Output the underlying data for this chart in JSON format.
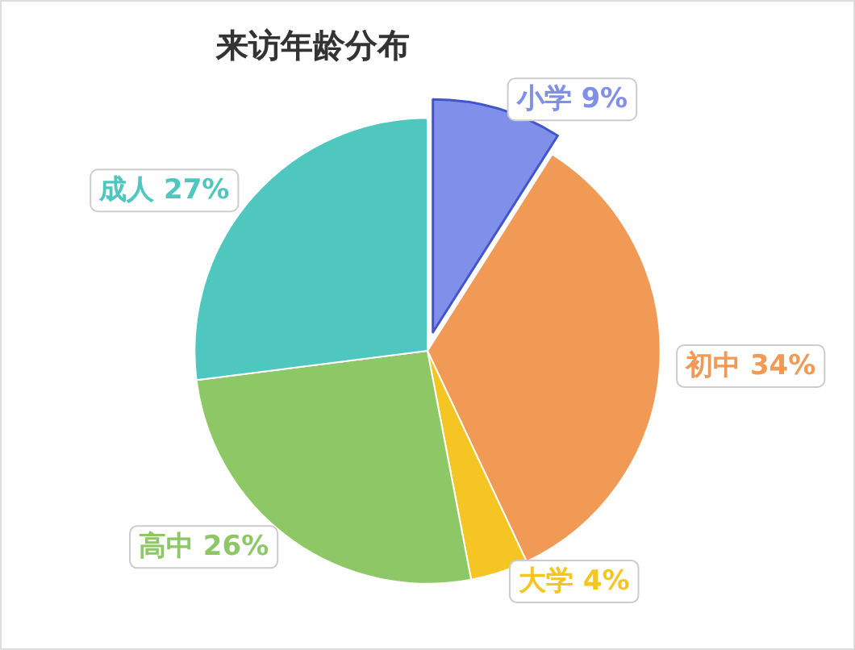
{
  "chart_data": {
    "type": "pie",
    "title": "来访年龄分布",
    "categories": [
      "小学",
      "初中",
      "大学",
      "高中",
      "成人"
    ],
    "values": [
      9,
      34,
      4,
      26,
      27
    ],
    "value_labels": [
      "9%",
      "34%",
      "4%",
      "26%",
      "27%"
    ],
    "colors": [
      "#7f8fea",
      "#f09a55",
      "#f5c623",
      "#8ec866",
      "#4fc7bf"
    ],
    "legend": false
  }
}
